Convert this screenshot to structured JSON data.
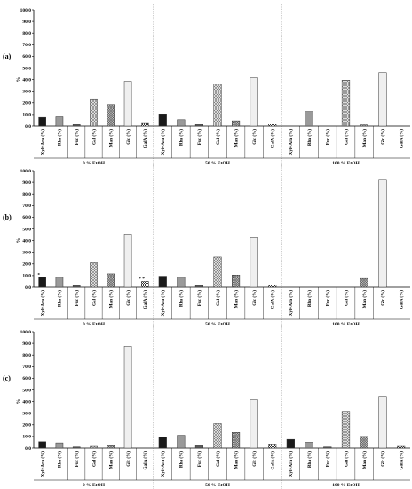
{
  "colors": {
    "xyl_ara": "#1a1a1a",
    "rha": "#9a9a9a",
    "fuc": "#5a5a5a",
    "gal": "#dcdcdc",
    "man": "#b8b8b8",
    "glc": "#efefef",
    "gala": "#cfcfcf"
  },
  "chart_data": [
    {
      "type": "bar",
      "panel_label": "(a)",
      "ylabel": "%",
      "ylim": [
        0,
        100
      ],
      "yticks": [
        "0.0",
        "10.0",
        "20.0",
        "30.0",
        "40.0",
        "50.0",
        "60.0",
        "70.0",
        "80.0",
        "90.0",
        "100.0"
      ],
      "categories": [
        "Xyl+Ara (%)",
        "Rha (%)",
        "Fuc (%)",
        "Gal (%)",
        "Man (%)",
        "Glc (%)",
        "GalA (%)"
      ],
      "groups": [
        {
          "name": "0 % EtOH",
          "values": [
            7.5,
            8,
            1.5,
            23.5,
            18.5,
            38.5,
            3
          ]
        },
        {
          "name": "50 % EtOH",
          "values": [
            10.5,
            5.5,
            1.5,
            36,
            4.5,
            41.5,
            2
          ]
        },
        {
          "name": "100 % EtOH",
          "values": [
            0,
            12.5,
            0,
            39.5,
            2,
            46,
            0
          ]
        }
      ],
      "annotations": []
    },
    {
      "type": "bar",
      "panel_label": "(b)",
      "ylabel": "%",
      "ylim": [
        0,
        100
      ],
      "yticks": [
        "0.0",
        "10.0",
        "20.0",
        "30.0",
        "40.0",
        "50.0",
        "60.0",
        "70.0",
        "80.0",
        "90.0",
        "100.0"
      ],
      "categories": [
        "Xyl+Ara (%)",
        "Rha (%)",
        "Fuc (%)",
        "Gal (%)",
        "Man (%)",
        "Glc (%)",
        "GalA (%)"
      ],
      "groups": [
        {
          "name": "0 % EtOH",
          "values": [
            8.5,
            8.5,
            1.5,
            21,
            11.5,
            45.5,
            5
          ]
        },
        {
          "name": "50 % EtOH",
          "values": [
            9.5,
            8.5,
            1.5,
            26,
            10.5,
            42.5,
            2
          ]
        },
        {
          "name": "100 % EtOH",
          "values": [
            0,
            0,
            0,
            0,
            7.5,
            92.5,
            0
          ]
        }
      ],
      "annotations": [
        {
          "group": 0,
          "category": 0,
          "text": "*"
        },
        {
          "group": 0,
          "category": 6,
          "text": "* *"
        }
      ]
    },
    {
      "type": "bar",
      "panel_label": "(c)",
      "ylabel": "%",
      "ylim": [
        0,
        100
      ],
      "yticks": [
        "0.0",
        "10.0",
        "20.0",
        "30.0",
        "40.0",
        "50.0",
        "60.0",
        "70.0",
        "80.0",
        "90.0",
        "100.0"
      ],
      "categories": [
        "Xyl+Ara (%)",
        "Rha (%)",
        "Fuc (%)",
        "Gal (%)",
        "Man (%)",
        "Glc (%)",
        "GalA (%)"
      ],
      "groups": [
        {
          "name": "0 % EtOH",
          "values": [
            5.5,
            4.5,
            1,
            1.5,
            2,
            87.5,
            0
          ]
        },
        {
          "name": "50 % EtOH",
          "values": [
            9.5,
            11,
            2,
            21,
            13.5,
            41.5,
            3.5
          ]
        },
        {
          "name": "100 % EtOH",
          "values": [
            7.5,
            5,
            1,
            31.5,
            10,
            44.5,
            1.5
          ]
        }
      ],
      "annotations": []
    }
  ]
}
